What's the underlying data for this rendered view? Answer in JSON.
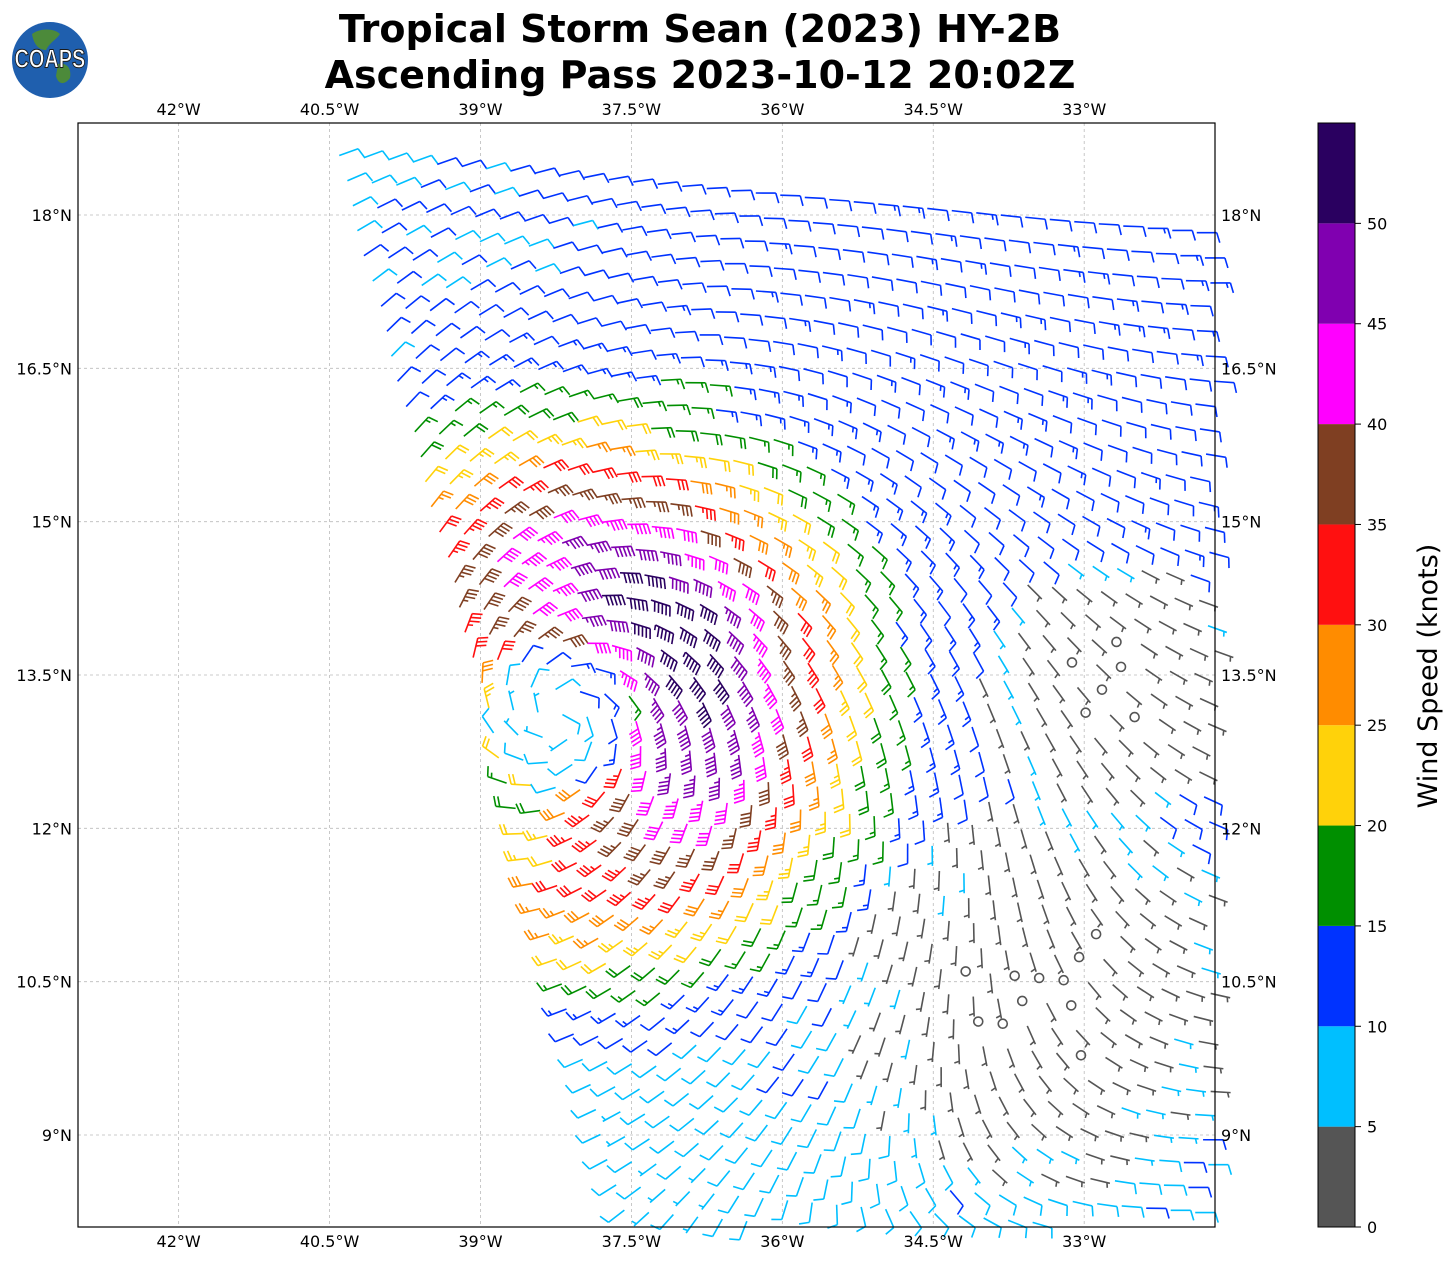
{
  "title": {
    "line1": "Tropical Storm Sean (2023) HY-2B",
    "line2": "Ascending Pass 2023-10-12 20:02Z"
  },
  "logo": {
    "text": "COAPS",
    "ocean_color": "#1f5fae",
    "land_color": "#4c8a3a"
  },
  "map": {
    "type": "scatterometer wind barbs",
    "lon_range": [
      -43,
      -31.7
    ],
    "lat_range": [
      8.1,
      18.9
    ],
    "lon_ticks": [
      {
        "value": -42,
        "label": "42°W"
      },
      {
        "value": -40.5,
        "label": "40.5°W"
      },
      {
        "value": -39,
        "label": "39°W"
      },
      {
        "value": -37.5,
        "label": "37.5°W"
      },
      {
        "value": -36,
        "label": "36°W"
      },
      {
        "value": -34.5,
        "label": "34.5°W"
      },
      {
        "value": -33,
        "label": "33°W"
      }
    ],
    "lat_ticks": [
      {
        "value": 18,
        "label": "18°N"
      },
      {
        "value": 16.5,
        "label": "16.5°N"
      },
      {
        "value": 15,
        "label": "15°N"
      },
      {
        "value": 13.5,
        "label": "13.5°N"
      },
      {
        "value": 12,
        "label": "12°N"
      },
      {
        "value": 10.5,
        "label": "10.5°N"
      },
      {
        "value": 9,
        "label": "9°N"
      }
    ],
    "gridlines": true,
    "storm_center": {
      "lon": -38.2,
      "lat": 13.1
    }
  },
  "colorbar": {
    "label": "Wind Speed (knots)",
    "bins": [
      {
        "min": 0,
        "max": 5,
        "color": "#555555"
      },
      {
        "min": 5,
        "max": 10,
        "color": "#00bfff"
      },
      {
        "min": 10,
        "max": 15,
        "color": "#0033ff"
      },
      {
        "min": 15,
        "max": 20,
        "color": "#008f00"
      },
      {
        "min": 20,
        "max": 25,
        "color": "#ffd20a"
      },
      {
        "min": 25,
        "max": 30,
        "color": "#ff8c00"
      },
      {
        "min": 30,
        "max": 35,
        "color": "#ff1010"
      },
      {
        "min": 35,
        "max": 40,
        "color": "#7f3f22"
      },
      {
        "min": 40,
        "max": 45,
        "color": "#ff00ff"
      },
      {
        "min": 45,
        "max": 50,
        "color": "#8000b0"
      },
      {
        "min": 50,
        "max": 55,
        "color": "#2a0060"
      }
    ],
    "ticks": [
      "0",
      "5",
      "10",
      "15",
      "20",
      "25",
      "30",
      "35",
      "40",
      "45",
      "50"
    ]
  }
}
